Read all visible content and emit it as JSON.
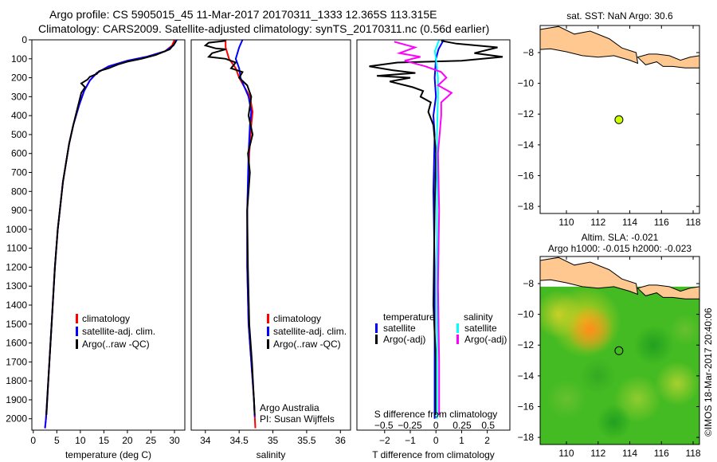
{
  "header": {
    "line1": "Argo profile: CS 5905015_45 11-Mar-2017 20170311_1333 12.365S 113.315E",
    "line2": "Climatology: CARS2009. Satellite-adjusted climatology: synTS_20170311.nc (0.56d earlier)"
  },
  "colors": {
    "clim": "#ff0000",
    "sat": "#0000ff",
    "argo": "#000000",
    "sal_sat": "#00ffff",
    "sal_argo": "#ff00ff",
    "land": "#ffc890",
    "float": "#ccff00"
  },
  "chart_data": [
    {
      "type": "line",
      "id": "temp",
      "xlabel": "temperature (deg C)",
      "ylabel": "",
      "xlim": [
        -0.3,
        32.2
      ],
      "ylim": [
        2060,
        0
      ],
      "xticks": [
        0,
        5,
        10,
        15,
        20,
        25,
        30
      ],
      "yticks": [
        0,
        100,
        200,
        300,
        400,
        500,
        600,
        700,
        800,
        900,
        1000,
        1100,
        1200,
        1300,
        1400,
        1500,
        1600,
        1700,
        1800,
        1900,
        2000
      ],
      "legend": [
        "climatology",
        "satellite-adj. clim.",
        "Argo(..raw -QC)"
      ],
      "series": [
        {
          "name": "climatology",
          "color": "clim",
          "x": [
            30,
            29.5,
            28,
            24,
            20,
            16,
            13.5,
            12,
            10.8,
            9.8,
            8.5,
            7.6,
            6.3,
            5.2,
            4.6,
            3.9,
            3.3,
            2.7,
            2.5
          ],
          "y": [
            0,
            30,
            60,
            90,
            110,
            140,
            175,
            215,
            270,
            340,
            450,
            550,
            750,
            1000,
            1200,
            1500,
            1750,
            2000,
            2050
          ]
        },
        {
          "name": "satellite-adj. clim.",
          "color": "sat",
          "x": [
            30.5,
            29.8,
            28,
            24,
            20,
            16,
            13.5,
            12,
            10.8,
            9.8,
            8.5,
            7.6,
            6.3,
            5.2,
            4.6,
            3.9,
            3.3,
            2.7,
            2.5
          ],
          "y": [
            0,
            30,
            60,
            90,
            110,
            140,
            175,
            215,
            270,
            340,
            450,
            550,
            750,
            1000,
            1200,
            1500,
            1750,
            2000,
            2050
          ]
        },
        {
          "name": "Argo(..raw -QC)",
          "color": "argo",
          "x": [
            30.3,
            30,
            29,
            26,
            23,
            20,
            18,
            16,
            14,
            13.5,
            12,
            11.5,
            10.2,
            11,
            10.2,
            9.8,
            9.2,
            8.5,
            7.6,
            6.3,
            5.2,
            4.6,
            3.9,
            3.3,
            2.8
          ],
          "y": [
            5,
            20,
            50,
            80,
            100,
            115,
            130,
            150,
            165,
            180,
            195,
            210,
            230,
            250,
            280,
            320,
            380,
            450,
            550,
            750,
            1000,
            1200,
            1500,
            1750,
            1980
          ]
        }
      ]
    },
    {
      "type": "line",
      "id": "salinity",
      "xlabel": "salinity",
      "xlim": [
        33.79,
        36.15
      ],
      "ylim": [
        2060,
        0
      ],
      "xticks": [
        34,
        34.5,
        35,
        35.5,
        36
      ],
      "legend": [
        "climatology",
        "satellite-adj. clim.",
        "Argo(..raw -QC)"
      ],
      "annotation": [
        "Argo Australia",
        "PI: Susan Wijffels"
      ],
      "series": [
        {
          "name": "climatology",
          "color": "clim",
          "x": [
            34.3,
            34.3,
            34.35,
            34.45,
            34.5,
            34.58,
            34.66,
            34.7,
            34.68,
            34.65,
            34.62,
            34.62,
            34.64,
            34.68,
            34.72,
            34.74
          ],
          "y": [
            0,
            40,
            100,
            150,
            200,
            250,
            300,
            380,
            450,
            600,
            900,
            1200,
            1500,
            1700,
            1900,
            2050
          ]
        },
        {
          "name": "satellite-adj. clim.",
          "color": "sat",
          "x": [
            34.55,
            34.5,
            34.45,
            34.5,
            34.52,
            34.58,
            34.64,
            34.68,
            34.66,
            34.64,
            34.62,
            34.62,
            34.64,
            34.68,
            34.72,
            34.73
          ],
          "y": [
            0,
            40,
            100,
            150,
            200,
            250,
            300,
            380,
            450,
            600,
            900,
            1200,
            1500,
            1700,
            1900,
            1990
          ]
        },
        {
          "name": "Argo(..raw -QC)",
          "color": "argo",
          "x": [
            34.3,
            34.05,
            34.0,
            34.15,
            34.3,
            34.1,
            34.05,
            34.3,
            34.45,
            34.38,
            34.55,
            34.5,
            34.62,
            34.68,
            34.64,
            34.7,
            34.63,
            34.66,
            34.62,
            34.63,
            34.65,
            34.69,
            34.73
          ],
          "y": [
            5,
            15,
            30,
            45,
            50,
            70,
            90,
            100,
            120,
            150,
            170,
            200,
            240,
            300,
            400,
            500,
            600,
            700,
            900,
            1200,
            1500,
            1700,
            1980
          ]
        }
      ]
    },
    {
      "type": "line",
      "id": "difference",
      "xlabel": "T difference from climatology",
      "x2label": "S difference from climatology",
      "xlim": [
        -3.08,
        2.88
      ],
      "ylim": [
        2060,
        0
      ],
      "xticks": [
        -2,
        -1,
        0,
        1,
        2
      ],
      "x2ticks": [
        -0.5,
        -0.25,
        0,
        0.25,
        0.5
      ],
      "x2scale": 0.246,
      "legend": {
        "temperature": "temperature",
        "salinity": "salinity",
        "t_sat": "satellite",
        "t_argo": "Argo(-adj)",
        "s_sat": "satellite",
        "s_argo": "Argo(-adj)"
      },
      "series": [
        {
          "name": "T satellite",
          "color": "sat",
          "x": [
            0.3,
            0.1,
            0,
            -0.05,
            0,
            -0.1,
            -0.05,
            -0.1,
            -0.05,
            -0.05,
            -0.05
          ],
          "y": [
            0,
            50,
            100,
            200,
            300,
            400,
            500,
            800,
            1200,
            1600,
            2000
          ]
        },
        {
          "name": "T Argo(-adj)",
          "color": "argo",
          "x": [
            0.2,
            0.8,
            2.4,
            1.5,
            2.6,
            1.0,
            -1.5,
            -2.6,
            -1.7,
            -0.8,
            -2.3,
            -1.0,
            -1.8,
            -0.9,
            -0.5,
            -0.6,
            -0.2,
            -0.3,
            -0.1,
            0,
            -0.05,
            -0.1,
            0,
            0
          ],
          "y": [
            5,
            20,
            40,
            70,
            90,
            110,
            120,
            140,
            160,
            175,
            190,
            200,
            220,
            250,
            270,
            300,
            330,
            380,
            450,
            600,
            900,
            1400,
            1700,
            1980
          ]
        },
        {
          "name": "S satellite",
          "color": "sal_sat",
          "x": [
            0.03,
            -0.01,
            0,
            0.02,
            0.02,
            0.01,
            0.01,
            0.01,
            0.01,
            0.01
          ],
          "y": [
            0,
            60,
            100,
            200,
            300,
            500,
            800,
            1200,
            1600,
            2000
          ]
        },
        {
          "name": "S Argo(-adj)",
          "color": "sal_argo",
          "x": [
            -0.4,
            -0.2,
            -0.35,
            -0.15,
            -0.3,
            -0.1,
            0.05,
            0.1,
            0.02,
            0.15,
            0.05,
            0.05,
            0.02,
            0.03,
            0.02,
            0.03,
            0.03
          ],
          "y": [
            10,
            40,
            70,
            90,
            110,
            140,
            170,
            200,
            240,
            280,
            330,
            400,
            600,
            900,
            1300,
            1700,
            1980
          ]
        }
      ]
    },
    {
      "type": "map",
      "id": "sst_map",
      "title": "sat. SST: NaN Argo: 30.6",
      "xlim": [
        108.34,
        118.4
      ],
      "ylim": [
        -18.46,
        -6.24
      ],
      "xticks": [
        110,
        112,
        114,
        116,
        118
      ],
      "yticks": [
        -8,
        -10,
        -12,
        -14,
        -16,
        -18
      ],
      "float": {
        "lon": 113.315,
        "lat": -12.365
      }
    },
    {
      "type": "heatmap",
      "id": "sla_map",
      "title": "Altim. SLA: -0.021",
      "subtitle": "Argo h1000: -0.015 h2000: -0.023",
      "xlim": [
        108.34,
        118.4
      ],
      "ylim": [
        -18.46,
        -6.24
      ],
      "xticks": [
        110,
        112,
        114,
        116,
        118
      ],
      "yticks": [
        -8,
        -10,
        -12,
        -14,
        -16,
        -18
      ],
      "float": {
        "lon": 113.315,
        "lat": -12.365
      },
      "credit": "©IMOS 18-Mar-2017 20:40:06"
    }
  ],
  "coastline": {
    "java": [
      [
        108.34,
        -7.8
      ],
      [
        109,
        -7.75
      ],
      [
        110,
        -7.95
      ],
      [
        111,
        -8.2
      ],
      [
        112,
        -8.3
      ],
      [
        113,
        -8.2
      ],
      [
        114,
        -8.5
      ],
      [
        114.5,
        -8.7
      ],
      [
        114.4,
        -8.0
      ],
      [
        113.5,
        -7.7
      ],
      [
        112.7,
        -7.1
      ],
      [
        111.5,
        -6.6
      ],
      [
        110.5,
        -6.8
      ],
      [
        109.5,
        -6.3
      ],
      [
        108.34,
        -6.5
      ]
    ],
    "bali_lombok": [
      [
        114.5,
        -8.3
      ],
      [
        115,
        -8.8
      ],
      [
        115.7,
        -8.6
      ],
      [
        116.1,
        -8.9
      ],
      [
        116.7,
        -8.9
      ],
      [
        117.5,
        -9.0
      ],
      [
        118.4,
        -9.0
      ],
      [
        118.4,
        -8.2
      ],
      [
        117.8,
        -8.3
      ],
      [
        117.2,
        -8.5
      ],
      [
        116.5,
        -8.2
      ],
      [
        115.7,
        -8.1
      ],
      [
        115.2,
        -8.1
      ]
    ]
  }
}
